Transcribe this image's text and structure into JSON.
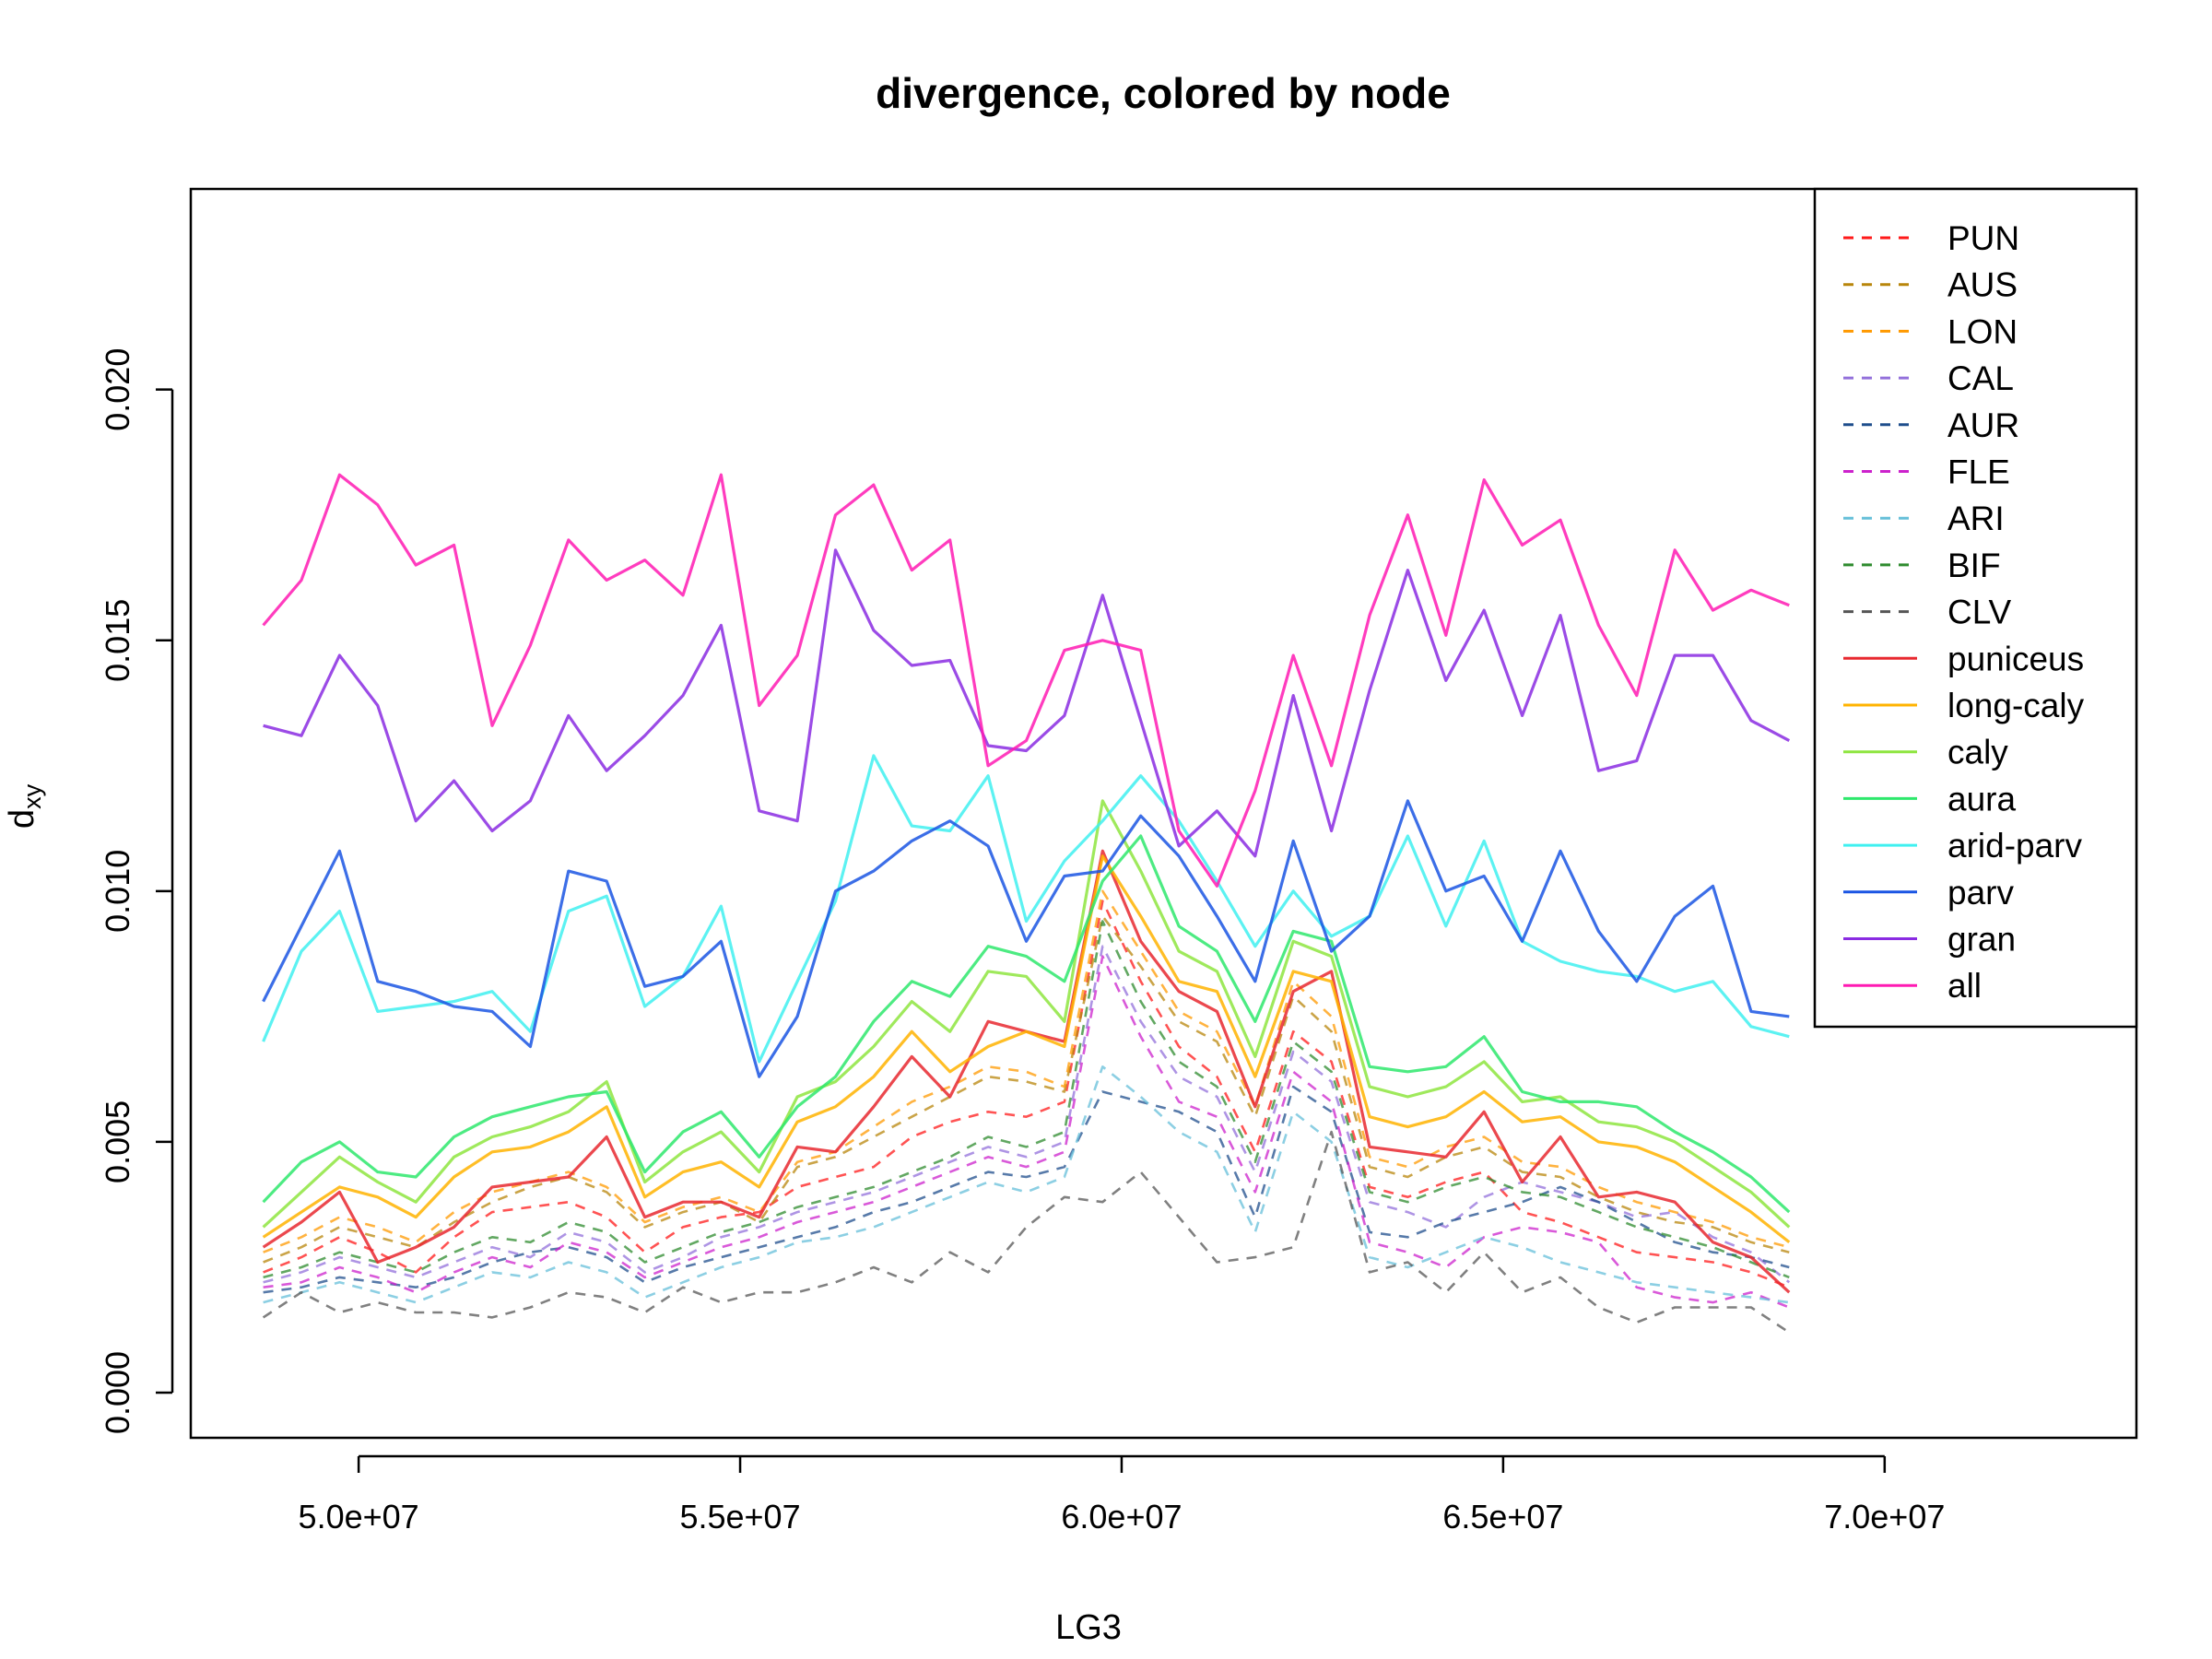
{
  "chart_data": {
    "type": "line",
    "title": "divergence, colored by node",
    "xlabel": "LG3",
    "ylabel_main": "d",
    "ylabel_sub": "xy",
    "xlim": [
      47800000,
      73300000
    ],
    "ylim": [
      -0.0009,
      0.024
    ],
    "x_ticks": [
      50000000,
      55000000,
      60000000,
      65000000,
      70000000
    ],
    "x_tick_labels": [
      "5.0e+07",
      "5.5e+07",
      "6.0e+07",
      "6.5e+07",
      "7.0e+07"
    ],
    "y_ticks": [
      0.0,
      0.005,
      0.01,
      0.015,
      0.02
    ],
    "y_tick_labels": [
      "0.000",
      "0.005",
      "0.010",
      "0.015",
      "0.020"
    ],
    "grid": false,
    "legend_position": "top-right",
    "x": [
      48750000,
      49250000,
      49750000,
      50250000,
      50750000,
      51250000,
      51750000,
      52250000,
      52750000,
      53250000,
      53750000,
      54250000,
      54750000,
      55250000,
      55750000,
      56250000,
      56750000,
      57250000,
      57750000,
      58250000,
      58750000,
      59250000,
      59750000,
      60250000,
      60750000,
      61250000,
      61750000,
      62250000,
      62750000,
      63250000,
      63750000,
      64250000,
      64750000,
      65250000,
      65750000,
      66250000,
      66750000,
      67250000,
      67750000,
      68250000,
      68750000
    ],
    "series": [
      {
        "name": "PUN",
        "color": "#ff1a1a",
        "dashed": true,
        "values": [
          0.0024,
          0.0027,
          0.0031,
          0.0028,
          0.0024,
          0.0031,
          0.0036,
          0.0037,
          0.0038,
          0.0035,
          0.0028,
          0.0033,
          0.0035,
          0.0036,
          0.0041,
          0.0043,
          0.0045,
          0.0051,
          0.0054,
          0.0056,
          0.0055,
          0.0058,
          0.0098,
          0.0082,
          0.0069,
          0.0063,
          0.0048,
          0.0072,
          0.0066,
          0.0041,
          0.0039,
          0.0042,
          0.0044,
          0.0036,
          0.0034,
          0.0031,
          0.0028,
          0.0027,
          0.0026,
          0.0024,
          0.0021
        ]
      },
      {
        "name": "AUS",
        "color": "#b8860b",
        "dashed": true,
        "values": [
          0.0026,
          0.0029,
          0.0033,
          0.0031,
          0.0029,
          0.0034,
          0.0038,
          0.0041,
          0.0043,
          0.004,
          0.0033,
          0.0036,
          0.0038,
          0.0034,
          0.0045,
          0.0047,
          0.0051,
          0.0055,
          0.0059,
          0.0063,
          0.0062,
          0.006,
          0.0095,
          0.0085,
          0.0074,
          0.007,
          0.0055,
          0.0079,
          0.0072,
          0.0045,
          0.0043,
          0.0047,
          0.0049,
          0.0044,
          0.0043,
          0.0039,
          0.0036,
          0.0034,
          0.0033,
          0.003,
          0.0028
        ]
      },
      {
        "name": "LON",
        "color": "#ff9900",
        "dashed": true,
        "values": [
          0.0028,
          0.0031,
          0.0035,
          0.0033,
          0.003,
          0.0036,
          0.004,
          0.0042,
          0.0044,
          0.0041,
          0.0034,
          0.0037,
          0.0039,
          0.0036,
          0.0046,
          0.0048,
          0.0053,
          0.0058,
          0.0061,
          0.0065,
          0.0064,
          0.0061,
          0.01,
          0.0088,
          0.0076,
          0.0072,
          0.0057,
          0.0082,
          0.0075,
          0.0047,
          0.0045,
          0.0049,
          0.0051,
          0.0046,
          0.0045,
          0.0041,
          0.0038,
          0.0036,
          0.0034,
          0.0031,
          0.0029
        ]
      },
      {
        "name": "CAL",
        "color": "#9370db",
        "dashed": true,
        "values": [
          0.0022,
          0.0024,
          0.0027,
          0.0025,
          0.0023,
          0.0026,
          0.0029,
          0.0027,
          0.0032,
          0.003,
          0.0024,
          0.0027,
          0.0031,
          0.0033,
          0.0036,
          0.0038,
          0.004,
          0.0043,
          0.0046,
          0.0049,
          0.0047,
          0.005,
          0.0089,
          0.0074,
          0.0063,
          0.0059,
          0.0044,
          0.0068,
          0.0062,
          0.0038,
          0.0036,
          0.0033,
          0.0039,
          0.0042,
          0.004,
          0.0038,
          0.0035,
          0.0036,
          0.0031,
          0.0028,
          0.0022
        ]
      },
      {
        "name": "AUR",
        "color": "#1f4e8c",
        "dashed": true,
        "values": [
          0.002,
          0.0021,
          0.0023,
          0.0022,
          0.0021,
          0.0023,
          0.0026,
          0.0028,
          0.0029,
          0.0027,
          0.0022,
          0.0025,
          0.0027,
          0.0029,
          0.0031,
          0.0033,
          0.0036,
          0.0038,
          0.0041,
          0.0044,
          0.0043,
          0.0045,
          0.006,
          0.0058,
          0.0056,
          0.0052,
          0.0035,
          0.0061,
          0.0056,
          0.0032,
          0.0031,
          0.0034,
          0.0036,
          0.0038,
          0.0041,
          0.0038,
          0.0034,
          0.003,
          0.0028,
          0.0027,
          0.0025
        ]
      },
      {
        "name": "FLE",
        "color": "#cc22cc",
        "dashed": true,
        "values": [
          0.0021,
          0.0022,
          0.0025,
          0.0023,
          0.002,
          0.0024,
          0.0027,
          0.0025,
          0.003,
          0.0028,
          0.0023,
          0.0026,
          0.0029,
          0.0031,
          0.0034,
          0.0036,
          0.0038,
          0.0041,
          0.0044,
          0.0047,
          0.0045,
          0.0048,
          0.0087,
          0.0071,
          0.0058,
          0.0055,
          0.004,
          0.0064,
          0.0058,
          0.003,
          0.0028,
          0.0025,
          0.0031,
          0.0033,
          0.0032,
          0.003,
          0.0021,
          0.0019,
          0.0018,
          0.002,
          0.0017
        ]
      },
      {
        "name": "ARI",
        "color": "#66bfd9",
        "dashed": true,
        "values": [
          0.0018,
          0.002,
          0.0022,
          0.002,
          0.0018,
          0.0021,
          0.0024,
          0.0023,
          0.0026,
          0.0024,
          0.0019,
          0.0022,
          0.0025,
          0.0027,
          0.003,
          0.0031,
          0.0033,
          0.0036,
          0.0039,
          0.0042,
          0.004,
          0.0043,
          0.0065,
          0.0059,
          0.0052,
          0.0048,
          0.0032,
          0.0056,
          0.005,
          0.0027,
          0.0025,
          0.0028,
          0.0031,
          0.0029,
          0.0026,
          0.0024,
          0.0022,
          0.0021,
          0.002,
          0.0019,
          0.0018
        ]
      },
      {
        "name": "BIF",
        "color": "#2e8b2e",
        "dashed": true,
        "values": [
          0.0023,
          0.0025,
          0.0028,
          0.0026,
          0.0024,
          0.0028,
          0.0031,
          0.003,
          0.0034,
          0.0032,
          0.0026,
          0.0029,
          0.0032,
          0.0034,
          0.0037,
          0.0039,
          0.0041,
          0.0044,
          0.0047,
          0.0051,
          0.0049,
          0.0052,
          0.0094,
          0.0078,
          0.0066,
          0.0061,
          0.0046,
          0.007,
          0.0064,
          0.004,
          0.0038,
          0.0041,
          0.0043,
          0.004,
          0.0039,
          0.0036,
          0.0033,
          0.0031,
          0.0029,
          0.0026,
          0.0023
        ]
      },
      {
        "name": "CLV",
        "color": "#555555",
        "dashed": true,
        "values": [
          0.0015,
          0.002,
          0.0016,
          0.0018,
          0.0016,
          0.0016,
          0.0015,
          0.0017,
          0.002,
          0.0019,
          0.0016,
          0.0021,
          0.0018,
          0.002,
          0.002,
          0.0022,
          0.0025,
          0.0022,
          0.0028,
          0.0024,
          0.0033,
          0.0039,
          0.0038,
          0.0044,
          0.0035,
          0.0026,
          0.0027,
          0.0029,
          0.0052,
          0.0024,
          0.0026,
          0.002,
          0.0028,
          0.002,
          0.0023,
          0.0017,
          0.0014,
          0.0017,
          0.0017,
          0.0017,
          0.0012
        ]
      },
      {
        "name": "puniceus",
        "color": "#e8282f",
        "dashed": false,
        "values": [
          0.0029,
          0.0034,
          0.004,
          0.0026,
          0.0029,
          0.0033,
          0.0041,
          0.0042,
          0.0043,
          0.0051,
          0.0035,
          0.0038,
          0.0038,
          0.0035,
          0.0049,
          0.0048,
          0.0057,
          0.0067,
          0.0059,
          0.0074,
          0.0072,
          0.007,
          0.0108,
          0.009,
          0.008,
          0.0076,
          0.0057,
          0.008,
          0.0084,
          0.0049,
          0.0048,
          0.0047,
          0.0056,
          0.0042,
          0.0051,
          0.0039,
          0.004,
          0.0038,
          0.003,
          0.0027,
          0.002
        ]
      },
      {
        "name": "long-caly",
        "color": "#ffb300",
        "dashed": false,
        "values": [
          0.0031,
          0.0036,
          0.0041,
          0.0039,
          0.0035,
          0.0043,
          0.0048,
          0.0049,
          0.0052,
          0.0057,
          0.0039,
          0.0044,
          0.0046,
          0.0041,
          0.0054,
          0.0057,
          0.0063,
          0.0072,
          0.0064,
          0.0069,
          0.0072,
          0.0069,
          0.0107,
          0.0095,
          0.0082,
          0.008,
          0.0063,
          0.0084,
          0.0082,
          0.0055,
          0.0053,
          0.0055,
          0.006,
          0.0054,
          0.0055,
          0.005,
          0.0049,
          0.0046,
          0.0041,
          0.0036,
          0.003
        ]
      },
      {
        "name": "caly",
        "color": "#8ee53f",
        "dashed": false,
        "values": [
          0.0033,
          0.004,
          0.0047,
          0.0042,
          0.0038,
          0.0047,
          0.0051,
          0.0053,
          0.0056,
          0.0062,
          0.0042,
          0.0048,
          0.0052,
          0.0044,
          0.0059,
          0.0062,
          0.0069,
          0.0078,
          0.0072,
          0.0084,
          0.0083,
          0.0074,
          0.0118,
          0.0104,
          0.0088,
          0.0084,
          0.0067,
          0.009,
          0.0087,
          0.0061,
          0.0059,
          0.0061,
          0.0066,
          0.0058,
          0.0059,
          0.0054,
          0.0053,
          0.005,
          0.0045,
          0.004,
          0.0033
        ]
      },
      {
        "name": "aura",
        "color": "#2ee86c",
        "dashed": false,
        "values": [
          0.0038,
          0.0046,
          0.005,
          0.0044,
          0.0043,
          0.0051,
          0.0055,
          0.0057,
          0.0059,
          0.006,
          0.0044,
          0.0052,
          0.0056,
          0.0047,
          0.0057,
          0.0063,
          0.0074,
          0.0082,
          0.0079,
          0.0089,
          0.0087,
          0.0082,
          0.0102,
          0.0111,
          0.0093,
          0.0088,
          0.0074,
          0.0092,
          0.009,
          0.0065,
          0.0064,
          0.0065,
          0.0071,
          0.006,
          0.0058,
          0.0058,
          0.0057,
          0.0052,
          0.0048,
          0.0043,
          0.0036
        ]
      },
      {
        "name": "arid-parv",
        "color": "#40f0f0",
        "dashed": false,
        "values": [
          0.007,
          0.0088,
          0.0096,
          0.0076,
          0.0077,
          0.0078,
          0.008,
          0.0072,
          0.0096,
          0.0099,
          0.0077,
          0.0083,
          0.0097,
          0.0066,
          0.0082,
          0.0098,
          0.0127,
          0.0113,
          0.0112,
          0.0123,
          0.0094,
          0.0106,
          0.0114,
          0.0123,
          0.0114,
          0.0102,
          0.0089,
          0.01,
          0.0091,
          0.0095,
          0.0111,
          0.0093,
          0.011,
          0.009,
          0.0086,
          0.0084,
          0.0083,
          0.008,
          0.0082,
          0.0073,
          0.0071
        ]
      },
      {
        "name": "parv",
        "color": "#1a55e3",
        "dashed": false,
        "values": [
          0.0078,
          0.0093,
          0.0108,
          0.0082,
          0.008,
          0.0077,
          0.0076,
          0.0069,
          0.0104,
          0.0102,
          0.0081,
          0.0083,
          0.009,
          0.0063,
          0.0075,
          0.01,
          0.0104,
          0.011,
          0.0114,
          0.0109,
          0.009,
          0.0103,
          0.0104,
          0.0115,
          0.0107,
          0.0095,
          0.0082,
          0.011,
          0.0088,
          0.0095,
          0.0118,
          0.01,
          0.0103,
          0.009,
          0.0108,
          0.0092,
          0.0082,
          0.0095,
          0.0101,
          0.0076,
          0.0075
        ]
      },
      {
        "name": "gran",
        "color": "#8a2be2",
        "dashed": false,
        "values": [
          0.0133,
          0.0131,
          0.0147,
          0.0137,
          0.0114,
          0.0122,
          0.0112,
          0.0118,
          0.0135,
          0.0124,
          0.0131,
          0.0139,
          0.0153,
          0.0116,
          0.0114,
          0.0168,
          0.0152,
          0.0145,
          0.0146,
          0.0129,
          0.0128,
          0.0135,
          0.0159,
          0.0134,
          0.0109,
          0.0116,
          0.0107,
          0.0139,
          0.0112,
          0.014,
          0.0164,
          0.0142,
          0.0156,
          0.0135,
          0.0155,
          0.0124,
          0.0126,
          0.0147,
          0.0147,
          0.0134,
          0.013
        ]
      },
      {
        "name": "all",
        "color": "#ff1ab3",
        "dashed": false,
        "values": [
          0.0153,
          0.0162,
          0.0183,
          0.0177,
          0.0165,
          0.0169,
          0.0133,
          0.0149,
          0.017,
          0.0162,
          0.0166,
          0.0159,
          0.0183,
          0.0137,
          0.0147,
          0.0175,
          0.0181,
          0.0164,
          0.017,
          0.0125,
          0.013,
          0.0148,
          0.015,
          0.0148,
          0.0112,
          0.0101,
          0.012,
          0.0147,
          0.0125,
          0.0155,
          0.0175,
          0.0151,
          0.0182,
          0.0169,
          0.0174,
          0.0153,
          0.0139,
          0.0168,
          0.0156,
          0.016,
          0.0157
        ]
      }
    ]
  }
}
